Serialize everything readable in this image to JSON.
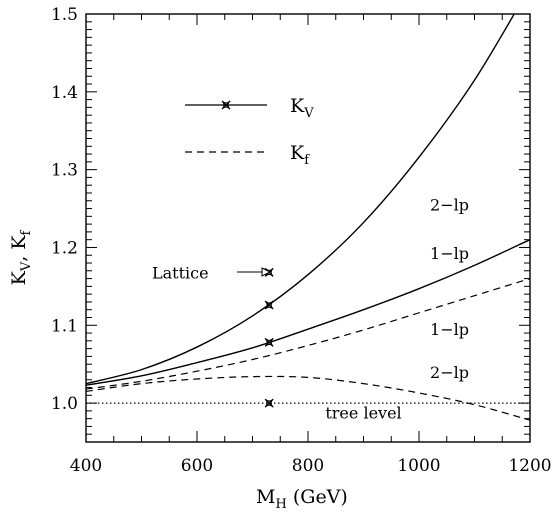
{
  "chart_data": {
    "type": "line",
    "title": "",
    "xlabel": "M_H (GeV)",
    "xlabel_main": "M",
    "xlabel_sub": "H",
    "xlabel_rest": " (GeV)",
    "ylabel": "K_V, K_f",
    "ylabel_parts": {
      "k1": "K",
      "s1": "V",
      "sep": ",  ",
      "k2": "K",
      "s2": "f"
    },
    "xlim": [
      400,
      1200
    ],
    "ylim": [
      0.95,
      1.5
    ],
    "x_ticks": [
      400,
      600,
      800,
      1000,
      1200
    ],
    "x_tick_labels": [
      "400",
      "600",
      "800",
      "1000",
      "1200"
    ],
    "y_ticks": [
      1.0,
      1.1,
      1.2,
      1.3,
      1.4,
      1.5
    ],
    "y_tick_labels": [
      "1.0",
      "1.1",
      "1.2",
      "1.3",
      "1.4",
      "1.5"
    ],
    "legend": {
      "placement": "top-left",
      "entries": [
        {
          "symbol": "K",
          "sub": "V",
          "style": "solid-with-marker"
        },
        {
          "symbol": "K",
          "sub": "f",
          "style": "dashed"
        }
      ]
    },
    "series": [
      {
        "label": "2-lp",
        "quantity": "K_V",
        "style": "solid",
        "x": [
          400,
          500,
          600,
          700,
          800,
          900,
          1000,
          1100,
          1200
        ],
        "y": [
          1.025,
          1.043,
          1.072,
          1.112,
          1.165,
          1.232,
          1.316,
          1.415,
          1.535
        ]
      },
      {
        "label": "1-lp",
        "quantity": "K_V",
        "style": "solid",
        "x": [
          400,
          500,
          600,
          700,
          800,
          900,
          1000,
          1100,
          1200
        ],
        "y": [
          1.023,
          1.035,
          1.052,
          1.071,
          1.095,
          1.12,
          1.147,
          1.177,
          1.21
        ]
      },
      {
        "label": "1-lp",
        "quantity": "K_f",
        "style": "dashed",
        "x": [
          400,
          500,
          600,
          700,
          800,
          900,
          1000,
          1100,
          1200
        ],
        "y": [
          1.018,
          1.028,
          1.041,
          1.056,
          1.074,
          1.094,
          1.116,
          1.138,
          1.16
        ]
      },
      {
        "label": "2-lp",
        "quantity": "K_f",
        "style": "dashed",
        "x": [
          400,
          500,
          600,
          700,
          800,
          900,
          1000,
          1100,
          1200
        ],
        "y": [
          1.015,
          1.025,
          1.031,
          1.034,
          1.033,
          1.025,
          1.013,
          0.998,
          0.978
        ]
      },
      {
        "label": "tree level",
        "quantity": "tree",
        "style": "dotted",
        "x": [
          400,
          1200
        ],
        "y": [
          1.0,
          1.0
        ]
      }
    ],
    "markers": [
      {
        "x": 730,
        "y": 1.126,
        "label": ""
      },
      {
        "x": 730,
        "y": 1.078,
        "label": ""
      },
      {
        "x": 730,
        "y": 1.0,
        "label": ""
      },
      {
        "x": 730,
        "y": 1.168,
        "label": "Lattice"
      }
    ],
    "annotations": [
      {
        "text": "2−lp",
        "x": 1055,
        "y": 1.255
      },
      {
        "text": "1−lp",
        "x": 1055,
        "y": 1.193
      },
      {
        "text": "1−lp",
        "x": 1055,
        "y": 1.095
      },
      {
        "text": "2−lp",
        "x": 1055,
        "y": 1.04
      },
      {
        "text": "tree level",
        "x": 900,
        "y": 0.988
      }
    ]
  }
}
